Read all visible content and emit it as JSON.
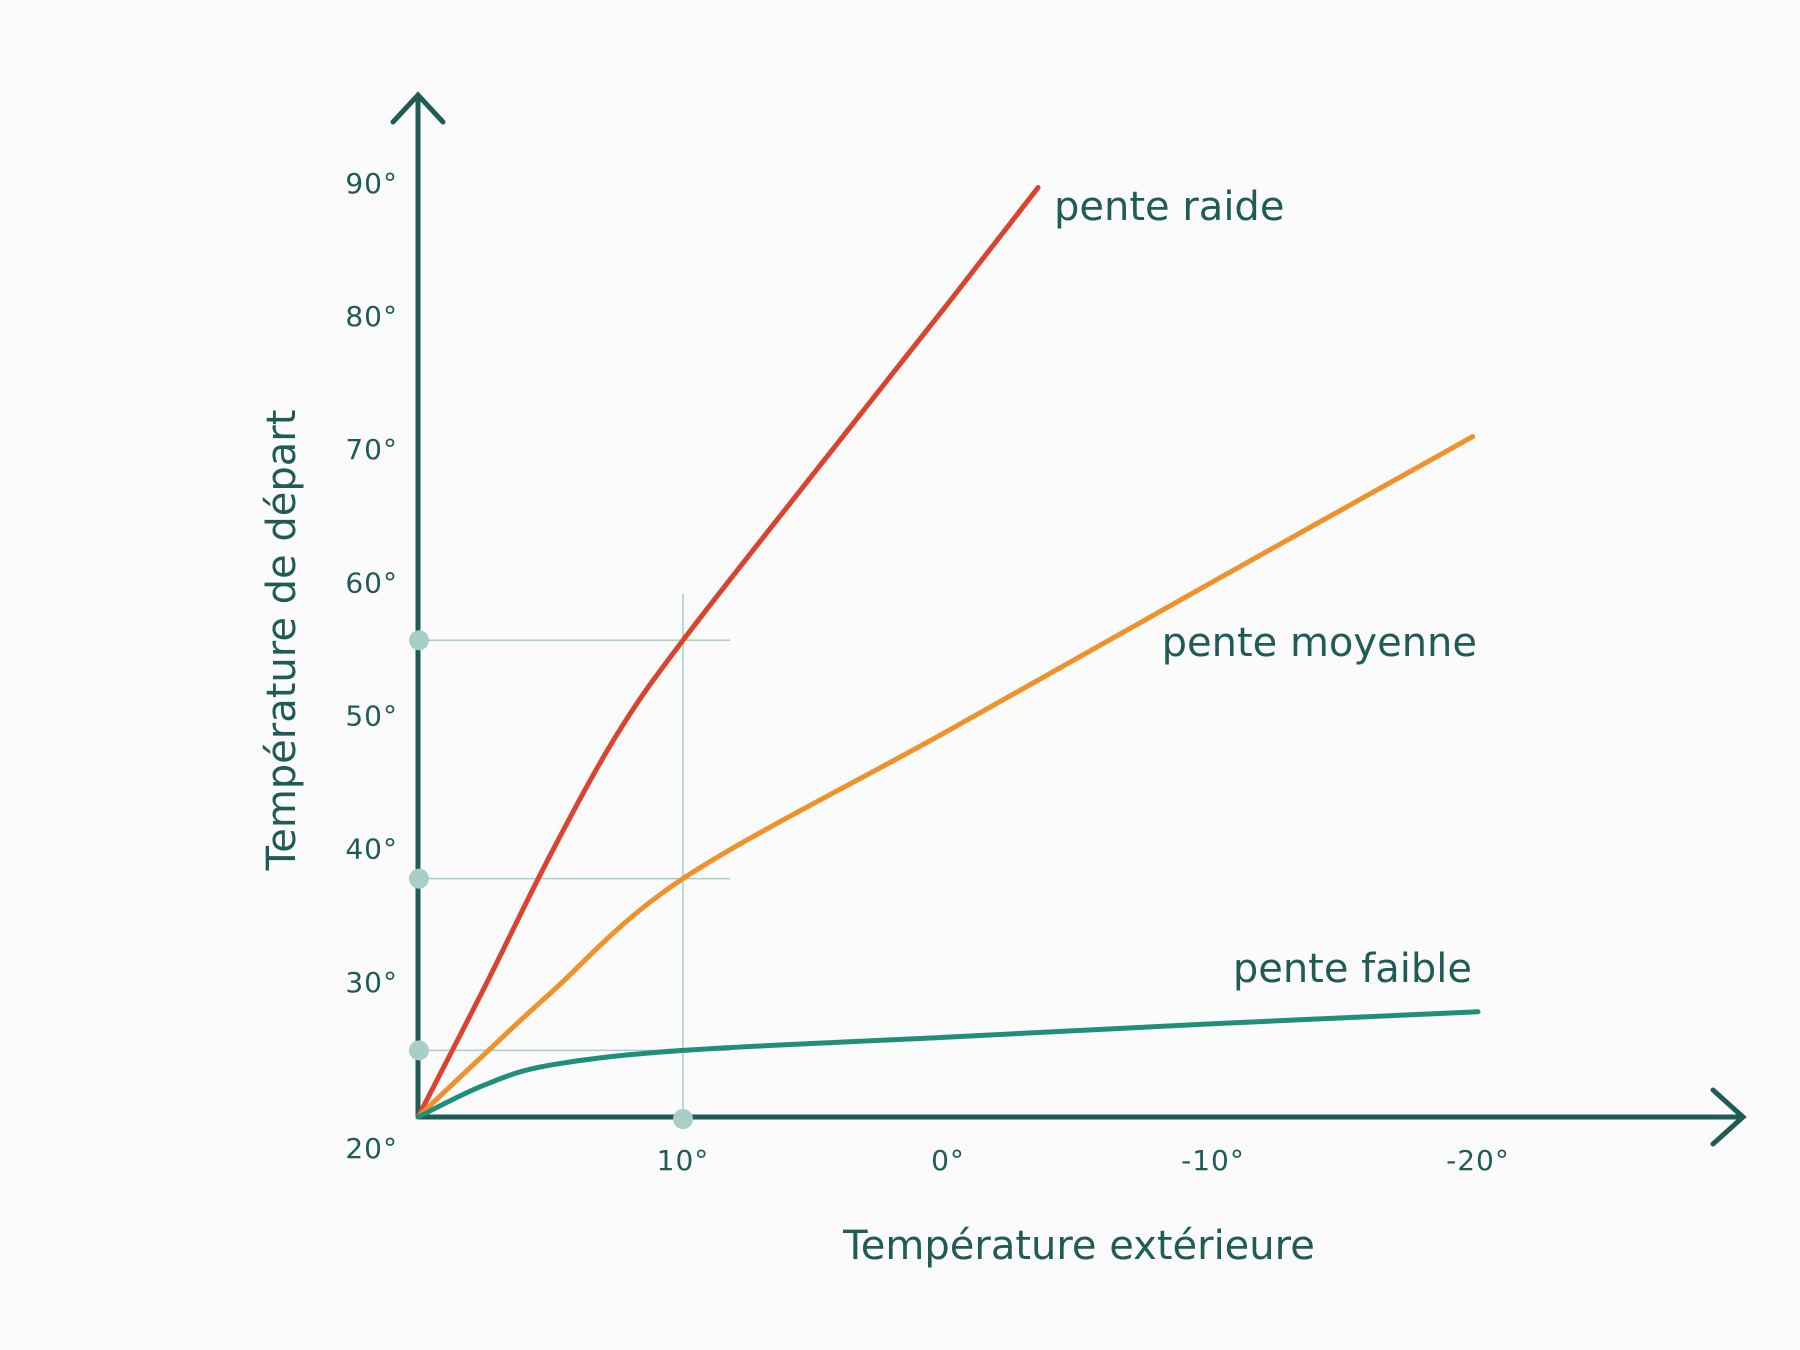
{
  "chart_data": {
    "type": "line",
    "x_label": "Température extérieure",
    "y_label": "Température de départ",
    "xlim": [
      20,
      -30
    ],
    "ylim": [
      20,
      96
    ],
    "xticks": [
      {
        "value": 10,
        "label": "10°"
      },
      {
        "value": 0,
        "label": "0°"
      },
      {
        "value": -10,
        "label": "-10°"
      },
      {
        "value": -20,
        "label": "-20°"
      }
    ],
    "yticks": [
      {
        "value": 20,
        "label": "20°"
      },
      {
        "value": 30,
        "label": "30°"
      },
      {
        "value": 40,
        "label": "40°"
      },
      {
        "value": 50,
        "label": "50°"
      },
      {
        "value": 60,
        "label": "60°"
      },
      {
        "value": 70,
        "label": "70°"
      },
      {
        "value": 80,
        "label": "80°"
      },
      {
        "value": 90,
        "label": "90°"
      }
    ],
    "series": [
      {
        "name": "pente raide",
        "color": "#d9432f",
        "x": [
          20,
          17.5,
          15,
          12.5,
          10,
          5,
          0,
          -3.4
        ],
        "values": [
          20,
          29.7,
          39.7,
          48.7,
          55.8,
          68.5,
          81.1,
          89.8
        ]
      },
      {
        "name": "pente moyenne",
        "color": "#f0922b",
        "x": [
          20,
          17.5,
          15,
          10,
          0,
          -10,
          -19.8
        ],
        "values": [
          20,
          24.7,
          29.3,
          37.9,
          49,
          60.2,
          71.1
        ]
      },
      {
        "name": "pente faible",
        "color": "#1f8f7a",
        "x": [
          20,
          17.5,
          15,
          10,
          0,
          -10,
          -20
        ],
        "values": [
          20,
          22.4,
          23.9,
          25,
          26,
          27,
          27.9
        ]
      }
    ],
    "guides": {
      "x": 10,
      "x_top": 59.3,
      "y": [
        55.8,
        37.9,
        25
      ],
      "color": "#a8cfc6"
    },
    "axis_color": "#1f5c55"
  }
}
